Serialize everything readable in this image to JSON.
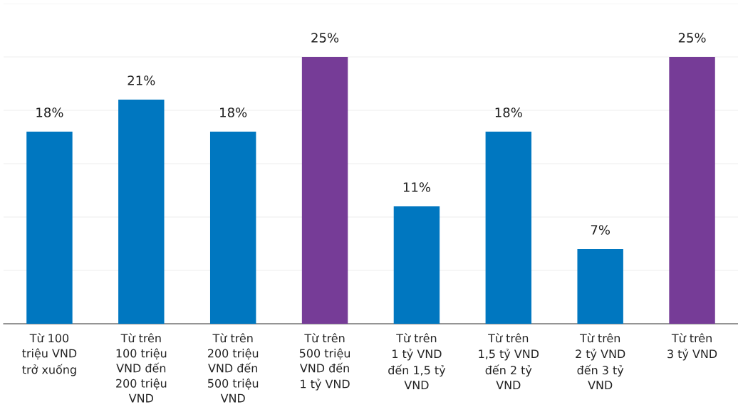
{
  "chart_data": {
    "type": "bar",
    "categories": [
      "Từ 100\ntriệu VND\ntrở xuống",
      "Từ trên\n100 triệu\nVND đến\n200 triệu\nVND",
      "Từ trên\n200 triệu\nVND đến\n500 triệu\nVND",
      "Từ trên\n500 triệu\nVND đến\n1 tỷ VND",
      "Từ trên\n1 tỷ VND\nđến 1,5 tỷ\nVND",
      "Từ trên\n1,5 tỷ VND\nđến 2 tỷ\nVND",
      "Từ trên\n2 tỷ VND\nđến 3 tỷ\nVND",
      "Từ trên\n3 tỷ VND"
    ],
    "values": [
      18,
      21,
      18,
      25,
      11,
      18,
      7,
      25
    ],
    "value_labels": [
      "18%",
      "21%",
      "18%",
      "25%",
      "11%",
      "18%",
      "7%",
      "25%"
    ],
    "colors": [
      "#0077c0",
      "#0077c0",
      "#0077c0",
      "#763c97",
      "#0077c0",
      "#0077c0",
      "#0077c0",
      "#763c97"
    ],
    "ylim": [
      0,
      30
    ],
    "yticks": [
      {
        "value": 0,
        "label": null
      },
      {
        "value": 5,
        "label": null
      },
      {
        "value": 10,
        "label": null
      },
      {
        "value": 15,
        "label": null
      },
      {
        "value": 20,
        "label": null
      },
      {
        "value": 25,
        "label": null
      },
      {
        "value": 30,
        "label": null
      }
    ],
    "grid": "y",
    "tick_labels": "x"
  }
}
